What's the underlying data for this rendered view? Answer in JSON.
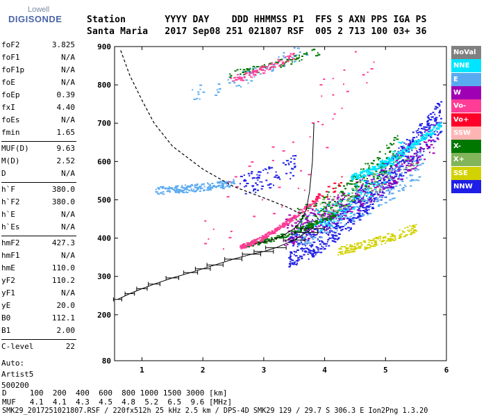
{
  "logo": {
    "top": "Lowell",
    "bottom": "DIGISONDE"
  },
  "header": {
    "line1": "Station       YYYY DAY    DDD HHMMSS P1  FFS S AXN PPS IGA PS",
    "line2": "Santa Maria   2017 Sep08 251 021807 RSF  005 2 713 100 03+ 36"
  },
  "params": [
    {
      "label": "foF2",
      "value": "3.825"
    },
    {
      "label": "foF1",
      "value": "N/A"
    },
    {
      "label": "foF1p",
      "value": "N/A"
    },
    {
      "label": "foE",
      "value": "N/A"
    },
    {
      "label": "foEp",
      "value": "0.39"
    },
    {
      "label": "fxI",
      "value": "4.40"
    },
    {
      "label": "foEs",
      "value": "N/A"
    },
    {
      "label": "fmin",
      "value": "1.65"
    },
    {
      "label": "MUF(D)",
      "value": "9.63"
    },
    {
      "label": "M(D)",
      "value": "2.52"
    },
    {
      "label": "D",
      "value": "N/A"
    },
    {
      "label": "h`F",
      "value": "380.0"
    },
    {
      "label": "h`F2",
      "value": "380.0"
    },
    {
      "label": "h`E",
      "value": "N/A"
    },
    {
      "label": "h`Es",
      "value": "N/A"
    },
    {
      "label": "hmF2",
      "value": "427.3"
    },
    {
      "label": "hmF1",
      "value": "N/A"
    },
    {
      "label": "hmE",
      "value": "110.0"
    },
    {
      "label": "yF2",
      "value": "110.2"
    },
    {
      "label": "yF1",
      "value": "N/A"
    },
    {
      "label": "yE",
      "value": "20.0"
    },
    {
      "label": "B0",
      "value": "112.1"
    },
    {
      "label": "B1",
      "value": "2.00"
    },
    {
      "label": "C-level",
      "value": "22"
    }
  ],
  "auto": {
    "line1": "Auto:",
    "line2": "Artist5",
    "line3": "500200"
  },
  "legend": [
    {
      "label": "NoVal",
      "color": "#808080"
    },
    {
      "label": "NNE",
      "color": "#00e5ff"
    },
    {
      "label": "E",
      "color": "#5aaaf0"
    },
    {
      "label": "W",
      "color": "#a000b4"
    },
    {
      "label": "Vo-",
      "color": "#ff3c96"
    },
    {
      "label": "Vo+",
      "color": "#ff0028"
    },
    {
      "label": "SSW",
      "color": "#ffb4b4"
    },
    {
      "label": "X-",
      "color": "#007800"
    },
    {
      "label": "X+",
      "color": "#82b45a"
    },
    {
      "label": "SSE",
      "color": "#d2d200"
    },
    {
      "label": "NNW",
      "color": "#1e1ee6"
    }
  ],
  "footer": {
    "line1": "D     100  200  400  600  800 1000 1500 3000 [km]",
    "line2": "MUF   4.1  4.1  4.3  4.5  4.8  5.2  6.5  9.6 [MHz]",
    "line3": "SMK29_2017251021807.RSF / 220fx512h 25 kHz 2.5 km / DPS-4D SMK29 129 / 29.7 S 306.3 E Ion2Png 1.3.20"
  },
  "chart_data": {
    "type": "scatter",
    "xlim": [
      0.55,
      6.0
    ],
    "ylim": [
      80,
      900
    ],
    "x_ticks": [
      1,
      2,
      3,
      4,
      5,
      6
    ],
    "y_ticks": [
      80,
      200,
      300,
      400,
      500,
      600,
      700,
      800,
      900
    ],
    "xlabel": "",
    "ylabel": "",
    "series": [
      {
        "name": "NNW",
        "color": "#1e1ee6",
        "clusters": [
          {
            "x": [
              3.4,
              5.9
            ],
            "y": [
              370,
              720
            ],
            "n": 700,
            "spread": 45
          },
          {
            "x": [
              2.6,
              3.5
            ],
            "y": [
              540,
              590
            ],
            "n": 80,
            "spread": 30
          }
        ]
      },
      {
        "name": "E",
        "color": "#5aaaf0",
        "clusters": [
          {
            "x": [
              1.2,
              2.5
            ],
            "y": [
              525,
              545
            ],
            "n": 180,
            "spread": 10
          },
          {
            "x": [
              3.5,
              5.6
            ],
            "y": [
              420,
              600
            ],
            "n": 260,
            "spread": 40
          },
          {
            "x": [
              1.8,
              3.7
            ],
            "y": [
              780,
              900
            ],
            "n": 60,
            "spread": 20
          }
        ]
      },
      {
        "name": "W",
        "color": "#a000b4",
        "clusters": [
          {
            "x": [
              3.3,
              5.9
            ],
            "y": [
              420,
              680
            ],
            "n": 320,
            "spread": 40
          }
        ]
      },
      {
        "name": "X-",
        "color": "#007800",
        "clusters": [
          {
            "x": [
              2.7,
              4.2
            ],
            "y": [
              385,
              465
            ],
            "n": 140,
            "spread": 6
          },
          {
            "x": [
              3.5,
              5.2
            ],
            "y": [
              450,
              640
            ],
            "n": 200,
            "spread": 35
          },
          {
            "x": [
              2.4,
              3.9
            ],
            "y": [
              830,
              890
            ],
            "n": 70,
            "spread": 10
          }
        ]
      },
      {
        "name": "NNE",
        "color": "#00e5ff",
        "clusters": [
          {
            "x": [
              4.4,
              5.9
            ],
            "y": [
              560,
              700
            ],
            "n": 240,
            "spread": 8
          },
          {
            "x": [
              3.8,
              5.3
            ],
            "y": [
              440,
              640
            ],
            "n": 120,
            "spread": 35
          }
        ]
      },
      {
        "name": "Vo-",
        "color": "#ff3c96",
        "clusters": [
          {
            "x": [
              2.6,
              3.9
            ],
            "y": [
              380,
              510
            ],
            "n": 220,
            "spread": 6
          },
          {
            "x": [
              2.4,
              3.5
            ],
            "y": [
              815,
              880
            ],
            "n": 90,
            "spread": 10
          },
          {
            "x": [
              2.0,
              4.8
            ],
            "y": [
              400,
              900
            ],
            "n": 50,
            "spread": 120
          }
        ]
      },
      {
        "name": "X+",
        "color": "#82b45a",
        "clusters": [
          {
            "x": [
              3.9,
              5.5
            ],
            "y": [
              480,
              620
            ],
            "n": 80,
            "spread": 30
          }
        ]
      },
      {
        "name": "SSE",
        "color": "#d2d200",
        "clusters": [
          {
            "x": [
              4.2,
              5.5
            ],
            "y": [
              370,
              430
            ],
            "n": 160,
            "spread": 12
          }
        ]
      },
      {
        "name": "Vo+",
        "color": "#ff0028",
        "clusters": [
          {
            "x": [
              3.6,
              4.3
            ],
            "y": [
              480,
              560
            ],
            "n": 20,
            "spread": 15
          }
        ]
      }
    ],
    "virtual_height_profile": {
      "x": [
        0.6,
        0.8,
        1.0,
        1.2,
        1.5,
        1.8,
        2.0,
        2.2,
        2.5,
        2.8,
        3.0,
        3.2,
        3.5,
        3.7,
        3.8,
        3.825
      ],
      "y": [
        240,
        255,
        268,
        280,
        296,
        310,
        320,
        330,
        345,
        358,
        365,
        375,
        395,
        415,
        425,
        430
      ]
    },
    "o_trace": {
      "x": [
        2.85,
        3.1,
        3.3,
        3.5,
        3.6,
        3.7,
        3.75,
        3.8,
        3.825
      ],
      "y": [
        385,
        393,
        405,
        425,
        442,
        475,
        520,
        600,
        700
      ]
    },
    "dashed_profile": {
      "x": [
        0.65,
        0.8,
        1.0,
        1.2,
        1.5,
        2.0,
        2.5,
        3.0,
        3.4,
        3.7
      ],
      "y": [
        890,
        825,
        760,
        700,
        640,
        580,
        535,
        505,
        480,
        455
      ]
    }
  }
}
